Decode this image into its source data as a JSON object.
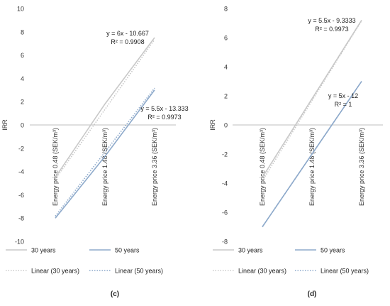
{
  "chart_data": [
    {
      "type": "line",
      "panel_label": "(c)",
      "ylabel": "IRR",
      "ylim": [
        -10,
        10
      ],
      "yticks": [
        10,
        8,
        6,
        4,
        2,
        0,
        -2,
        -4,
        -6,
        -8,
        -10
      ],
      "categories": [
        "Energy price 0.48 (SEK/m³)",
        "Energy price 1.48 (SEK/m³)",
        "Energy price 3.36 (SEK/m³)"
      ],
      "series": [
        {
          "name": "30 years",
          "values": [
            -4.5,
            1.8,
            7.5
          ],
          "color": "#c8c8c8",
          "style": "solid"
        },
        {
          "name": "50 years",
          "values": [
            -8.0,
            -2.7,
            3.0
          ],
          "color": "#8eaacb",
          "style": "solid"
        },
        {
          "name": "Linear (30 years)",
          "values": [
            -4.667,
            1.333,
            7.333
          ],
          "color": "#c8c8c8",
          "style": "dotted"
        },
        {
          "name": "Linear (50 years)",
          "values": [
            -7.833,
            -2.333,
            3.167
          ],
          "color": "#8eaacb",
          "style": "dotted"
        }
      ],
      "annotations": [
        {
          "equation": "y = 6x - 10.667",
          "r2": "R² = 0.9908"
        },
        {
          "equation": "y = 5.5x - 13.333",
          "r2": "R² = 0.9973"
        }
      ]
    },
    {
      "type": "line",
      "panel_label": "(d)",
      "ylabel": "IRR",
      "ylim": [
        -8,
        8
      ],
      "yticks": [
        8,
        6,
        4,
        2,
        0,
        -2,
        -4,
        -6,
        -8
      ],
      "categories": [
        "Energy price 0.48 (SEK/m³)",
        "Energy price 1.48 (SEK/m³)",
        "Energy price 3.36 (SEK/m³)"
      ],
      "series": [
        {
          "name": "30 years",
          "values": [
            -3.6,
            1.8,
            7.2
          ],
          "color": "#c8c8c8",
          "style": "solid"
        },
        {
          "name": "50 years",
          "values": [
            -7.0,
            -2.0,
            3.0
          ],
          "color": "#8eaacb",
          "style": "solid"
        },
        {
          "name": "Linear (30 years)",
          "values": [
            -3.833,
            1.667,
            7.167
          ],
          "color": "#c8c8c8",
          "style": "dotted"
        },
        {
          "name": "Linear (50 years)",
          "values": [
            -7.0,
            -2.0,
            3.0
          ],
          "color": "#8eaacb",
          "style": "dotted"
        }
      ],
      "annotations": [
        {
          "equation": "y = 5.5x - 9.3333",
          "r2": "R² = 0.9973"
        },
        {
          "equation": "y = 5x - 12",
          "r2": "R² = 1"
        }
      ]
    }
  ]
}
